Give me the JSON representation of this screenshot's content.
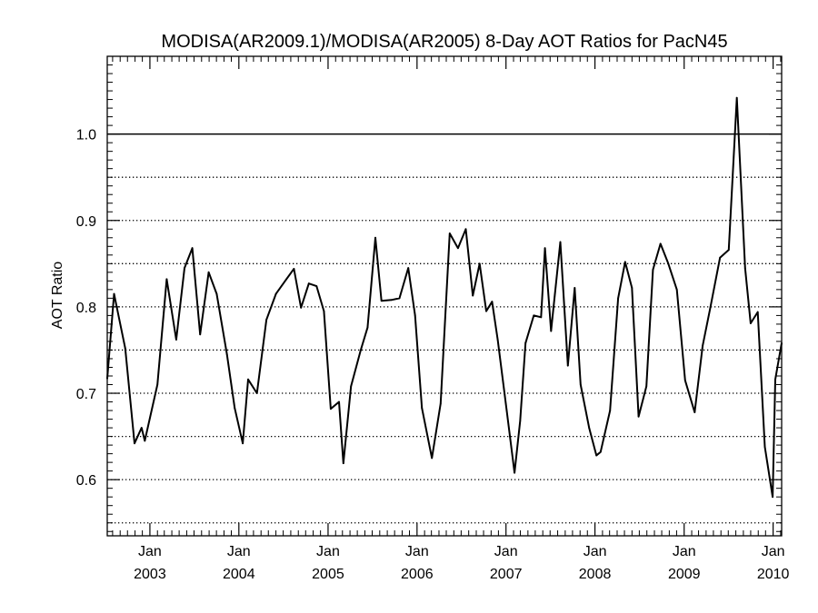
{
  "chart_data": {
    "type": "line",
    "title": "MODISA(AR2009.1)/MODISA(AR2005) 8-Day AOT Ratios for PacN45",
    "xlabel": "",
    "ylabel": "AOT Ratio",
    "xlim": [
      "2002-07-10",
      "2010-02-05"
    ],
    "ylim": [
      0.535,
      1.09
    ],
    "y_ticks": [
      "0.6",
      "0.7",
      "0.8",
      "0.9",
      "1.0"
    ],
    "x_ticks": [
      {
        "date": "2003-01-01",
        "month": "Jan",
        "year": "2003"
      },
      {
        "date": "2004-01-01",
        "month": "Jan",
        "year": "2004"
      },
      {
        "date": "2005-01-01",
        "month": "Jan",
        "year": "2005"
      },
      {
        "date": "2006-01-01",
        "month": "Jan",
        "year": "2006"
      },
      {
        "date": "2007-01-01",
        "month": "Jan",
        "year": "2007"
      },
      {
        "date": "2008-01-01",
        "month": "Jan",
        "year": "2008"
      },
      {
        "date": "2009-01-01",
        "month": "Jan",
        "year": "2009"
      },
      {
        "date": "2010-01-01",
        "month": "Jan",
        "year": "2010"
      }
    ],
    "reference_line": 1.0,
    "dotted_gridlines": [
      0.55,
      0.6,
      0.65,
      0.7,
      0.75,
      0.8,
      0.85,
      0.9,
      0.95
    ],
    "grid": "dotted horizontal",
    "line_color": "#000000",
    "series": [
      {
        "points": [
          [
            "2002-07-10",
            0.717
          ],
          [
            "2002-08-07",
            0.815
          ],
          [
            "2002-09-22",
            0.752
          ],
          [
            "2002-10-30",
            0.642
          ],
          [
            "2002-11-28",
            0.66
          ],
          [
            "2002-12-11",
            0.645
          ],
          [
            "2003-02-01",
            0.71
          ],
          [
            "2003-03-11",
            0.832
          ],
          [
            "2003-04-19",
            0.762
          ],
          [
            "2003-05-23",
            0.845
          ],
          [
            "2003-06-24",
            0.868
          ],
          [
            "2003-07-26",
            0.768
          ],
          [
            "2003-08-30",
            0.84
          ],
          [
            "2003-10-02",
            0.815
          ],
          [
            "2003-11-13",
            0.745
          ],
          [
            "2003-12-15",
            0.683
          ],
          [
            "2004-01-17",
            0.642
          ],
          [
            "2004-02-08",
            0.716
          ],
          [
            "2004-03-15",
            0.7
          ],
          [
            "2004-04-23",
            0.785
          ],
          [
            "2004-06-01",
            0.815
          ],
          [
            "2004-07-14",
            0.832
          ],
          [
            "2004-08-14",
            0.844
          ],
          [
            "2004-09-12",
            0.799
          ],
          [
            "2004-10-14",
            0.827
          ],
          [
            "2004-11-15",
            0.824
          ],
          [
            "2004-12-15",
            0.795
          ],
          [
            "2005-01-12",
            0.682
          ],
          [
            "2005-02-15",
            0.69
          ],
          [
            "2005-03-05",
            0.619
          ],
          [
            "2005-04-05",
            0.708
          ],
          [
            "2005-05-15",
            0.75
          ],
          [
            "2005-06-12",
            0.776
          ],
          [
            "2005-07-14",
            0.88
          ],
          [
            "2005-08-08",
            0.807
          ],
          [
            "2005-09-18",
            0.808
          ],
          [
            "2005-10-21",
            0.81
          ],
          [
            "2005-11-26",
            0.845
          ],
          [
            "2005-12-24",
            0.79
          ],
          [
            "2006-01-21",
            0.683
          ],
          [
            "2006-03-03",
            0.625
          ],
          [
            "2006-04-08",
            0.688
          ],
          [
            "2006-05-15",
            0.885
          ],
          [
            "2006-06-18",
            0.868
          ],
          [
            "2006-07-20",
            0.89
          ],
          [
            "2006-08-18",
            0.813
          ],
          [
            "2006-09-15",
            0.85
          ],
          [
            "2006-10-12",
            0.795
          ],
          [
            "2006-11-05",
            0.806
          ],
          [
            "2006-11-28",
            0.762
          ],
          [
            "2007-01-04",
            0.68
          ],
          [
            "2007-02-05",
            0.608
          ],
          [
            "2007-02-28",
            0.668
          ],
          [
            "2007-03-22",
            0.758
          ],
          [
            "2007-04-25",
            0.79
          ],
          [
            "2007-05-25",
            0.788
          ],
          [
            "2007-06-10",
            0.868
          ],
          [
            "2007-07-05",
            0.772
          ],
          [
            "2007-08-12",
            0.875
          ],
          [
            "2007-09-12",
            0.732
          ],
          [
            "2007-10-10",
            0.822
          ],
          [
            "2007-11-03",
            0.71
          ],
          [
            "2007-12-08",
            0.66
          ],
          [
            "2008-01-07",
            0.628
          ],
          [
            "2008-01-24",
            0.632
          ],
          [
            "2008-03-03",
            0.68
          ],
          [
            "2008-04-05",
            0.81
          ],
          [
            "2008-05-04",
            0.852
          ],
          [
            "2008-06-01",
            0.822
          ],
          [
            "2008-06-28",
            0.673
          ],
          [
            "2008-07-30",
            0.708
          ],
          [
            "2008-08-26",
            0.843
          ],
          [
            "2008-09-26",
            0.873
          ],
          [
            "2008-10-28",
            0.85
          ],
          [
            "2008-12-02",
            0.82
          ],
          [
            "2009-01-05",
            0.715
          ],
          [
            "2009-02-13",
            0.678
          ],
          [
            "2009-03-18",
            0.755
          ],
          [
            "2009-04-19",
            0.8
          ],
          [
            "2009-05-28",
            0.857
          ],
          [
            "2009-07-03",
            0.866
          ],
          [
            "2009-08-05",
            1.042
          ],
          [
            "2009-09-08",
            0.845
          ],
          [
            "2009-10-01",
            0.781
          ],
          [
            "2009-10-30",
            0.794
          ],
          [
            "2009-11-28",
            0.638
          ],
          [
            "2009-12-30",
            0.58
          ],
          [
            "2010-01-10",
            0.716
          ],
          [
            "2010-02-05",
            0.758
          ]
        ]
      }
    ]
  }
}
